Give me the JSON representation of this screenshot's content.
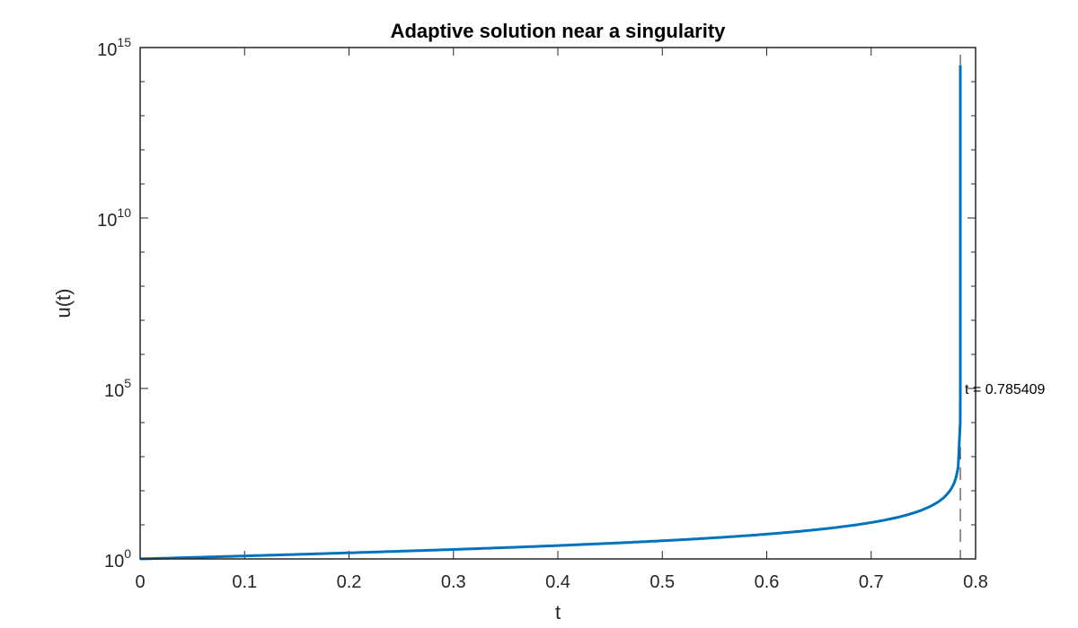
{
  "chart_data": {
    "type": "line",
    "title": "Adaptive solution near a singularity",
    "xlabel": "t",
    "ylabel": "u(t)",
    "xlim": [
      0,
      0.8
    ],
    "ylim": [
      1,
      1000000000000000.0
    ],
    "yscale": "log",
    "grid": false,
    "legend": null,
    "x_ticks": [
      "0",
      "0.1",
      "0.2",
      "0.3",
      "0.4",
      "0.5",
      "0.6",
      "0.7",
      "0.8"
    ],
    "y_ticks": [
      {
        "base": "10",
        "exp": "0"
      },
      {
        "base": "10",
        "exp": "5"
      },
      {
        "base": "10",
        "exp": "10"
      },
      {
        "base": "10",
        "exp": "15"
      }
    ],
    "series": [
      {
        "name": "u(t)",
        "color": "#0072BD",
        "x": [
          0,
          0.1,
          0.2,
          0.3,
          0.4,
          0.5,
          0.6,
          0.7,
          0.75,
          0.77,
          0.78,
          0.784,
          0.785,
          0.7853,
          0.78539,
          0.785398,
          0.7853981
        ],
        "values": [
          1.0,
          1.22,
          1.51,
          1.93,
          2.57,
          3.41,
          5.33,
          11.7,
          28.3,
          64.5,
          185,
          624,
          2500,
          10000,
          120000.0,
          5000000.0,
          300000000000000.0
        ]
      }
    ],
    "annotations": [
      {
        "text": "t = 0.785409",
        "x": 0.785409,
        "y": 100000.0,
        "type": "vertical-dashed-line"
      }
    ],
    "singularity_t": 0.785409
  }
}
